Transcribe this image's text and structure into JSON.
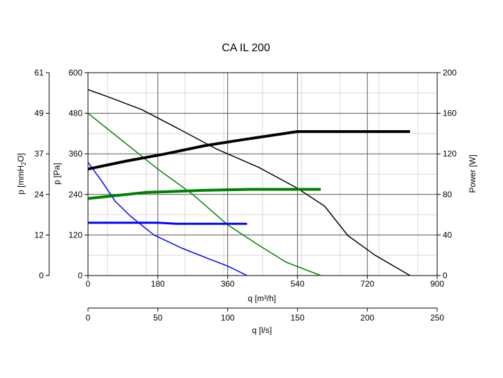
{
  "chart_data": {
    "type": "line",
    "title": "CA IL 200",
    "grid": true,
    "axes": {
      "flow_m3h": {
        "label": "q [m³/h]",
        "range": [
          0,
          900
        ],
        "ticks": [
          "0",
          "180",
          "360",
          "540",
          "720",
          "900"
        ]
      },
      "flow_ls": {
        "label": "q [l/s]",
        "range": [
          0,
          250
        ],
        "ticks": [
          "0",
          "50",
          "100",
          "150",
          "200",
          "250"
        ]
      },
      "pressure_pa": {
        "label": "p [Pa]",
        "range": [
          0,
          600
        ],
        "ticks": [
          "0",
          "120",
          "240",
          "360",
          "480",
          "600"
        ]
      },
      "pressure_mmh2o": {
        "label_main": "p [mmH",
        "label_sub": "2",
        "label_end": "O]",
        "range": [
          0,
          61
        ],
        "ticks": [
          "0",
          "12",
          "24",
          "37",
          "49",
          "61"
        ]
      },
      "power_w": {
        "label": "Power [W]",
        "range": [
          0,
          200
        ],
        "ticks": [
          "0",
          "40",
          "80",
          "120",
          "160",
          "200"
        ]
      }
    },
    "series": [
      {
        "kind": "pressure",
        "color": "#000000",
        "width": 1.5,
        "x": [
          0,
          60,
          140,
          240,
          330,
          440,
          540,
          610,
          670,
          740,
          830
        ],
        "y": [
          550,
          525,
          490,
          430,
          375,
          320,
          258,
          205,
          118,
          60,
          0
        ]
      },
      {
        "kind": "pressure",
        "color": "#008000",
        "width": 1.5,
        "x": [
          0,
          60,
          120,
          180,
          270,
          360,
          440,
          510,
          600
        ],
        "y": [
          480,
          425,
          370,
          315,
          240,
          150,
          90,
          40,
          0
        ]
      },
      {
        "kind": "pressure",
        "color": "#0000ff",
        "width": 1.5,
        "x": [
          0,
          35,
          70,
          110,
          170,
          240,
          310,
          360,
          410
        ],
        "y": [
          335,
          280,
          220,
          175,
          120,
          82,
          50,
          28,
          0
        ]
      },
      {
        "kind": "power",
        "color": "#000000",
        "width": 4,
        "x": [
          0,
          100,
          200,
          300,
          400,
          540,
          830
        ],
        "y": [
          105,
          113,
          120,
          128,
          134,
          142,
          142
        ]
      },
      {
        "kind": "power",
        "color": "#008000",
        "width": 4,
        "x": [
          0,
          150,
          300,
          420,
          600
        ],
        "y": [
          76,
          82,
          84,
          85,
          85
        ]
      },
      {
        "kind": "power",
        "color": "#0000ff",
        "width": 3,
        "x": [
          0,
          180,
          230,
          410
        ],
        "y": [
          52,
          52,
          51,
          51
        ]
      }
    ]
  }
}
